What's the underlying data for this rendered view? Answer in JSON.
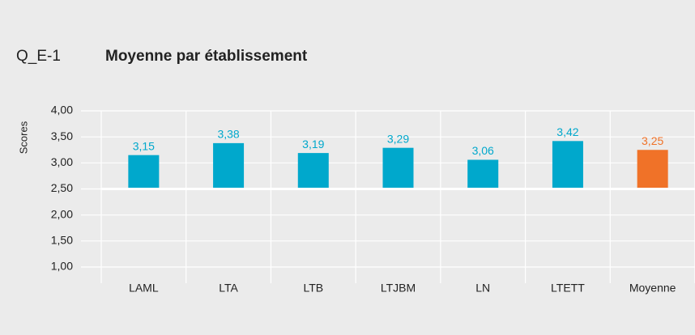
{
  "chart_data": {
    "type": "bar",
    "code": "Q_E-1",
    "title": "Moyenne par établissement",
    "y_label": "Scores",
    "categories": [
      "LAML",
      "LTA",
      "LTB",
      "LTJBM",
      "LN",
      "LTETT",
      "Moyenne"
    ],
    "values": [
      3.15,
      3.38,
      3.19,
      3.29,
      3.06,
      3.42,
      3.25
    ],
    "value_labels": [
      "3,15",
      "3,38",
      "3,19",
      "3,29",
      "3,06",
      "3,42",
      "3,25"
    ],
    "colors": [
      "#00a8cc",
      "#00a8cc",
      "#00a8cc",
      "#00a8cc",
      "#00a8cc",
      "#00a8cc",
      "#f07228"
    ],
    "baseline": 2.5,
    "ylim": [
      1,
      4
    ],
    "yticks": [
      {
        "value": 4,
        "label": "4,00"
      },
      {
        "value": 3.5,
        "label": "3,50"
      },
      {
        "value": 3,
        "label": "3,00"
      },
      {
        "value": 2.5,
        "label": "2,50"
      },
      {
        "value": 2,
        "label": "2,00"
      },
      {
        "value": 1.5,
        "label": "1,50"
      },
      {
        "value": 1,
        "label": "1,00"
      }
    ],
    "grid": true
  }
}
